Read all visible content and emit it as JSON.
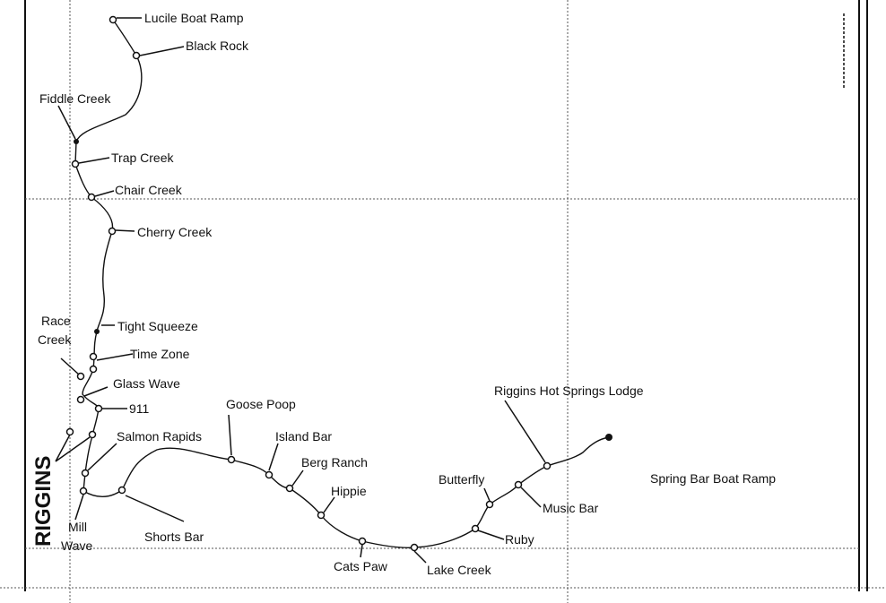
{
  "map": {
    "region_label": "RIGGINS",
    "colors": {
      "ink": "#111111",
      "paper": "#ffffff"
    },
    "places": {
      "lucile": "Lucile Boat Ramp",
      "black_rock": "Black Rock",
      "fiddle": "Fiddle Creek",
      "trap": "Trap Creek",
      "chair": "Chair Creek",
      "cherry": "Cherry Creek",
      "tight": "Tight Squeeze",
      "race_1": "Race",
      "race_2": "Creek",
      "time_zone": "Time Zone",
      "glass": "Glass Wave",
      "n911": "911",
      "salmon": "Salmon Rapids",
      "mill_1": "Mill",
      "mill_2": "Wave",
      "shorts": "Shorts Bar",
      "goose": "Goose Poop",
      "island": "Island Bar",
      "berg": "Berg Ranch",
      "hippie": "Hippie",
      "cats": "Cats Paw",
      "lake": "Lake Creek",
      "ruby": "Ruby",
      "butterfly": "Butterfly",
      "music": "Music Bar",
      "riggins_hs": "Riggins Hot Springs Lodge",
      "spring_bar": "Spring Bar Boat Ramp"
    }
  }
}
